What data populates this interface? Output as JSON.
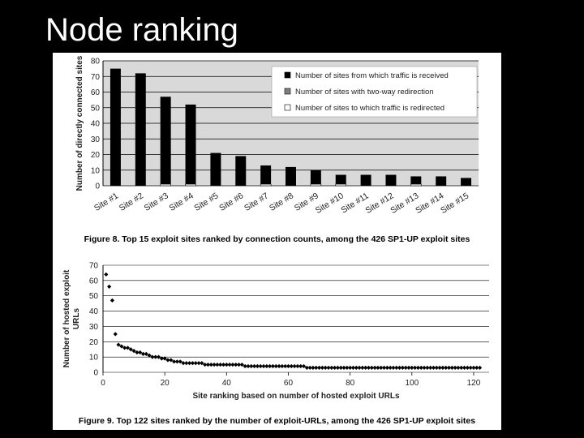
{
  "slide": {
    "title": "Node ranking"
  },
  "colors": {
    "background": "#000000",
    "panel": "#ffffff",
    "plot_area": "#d9d9d9",
    "bar": "#000000",
    "point": "#000000"
  },
  "chart_data": [
    {
      "type": "bar",
      "ylabel": "Number of directly connected sites",
      "ylim": [
        0,
        80
      ],
      "yticks": [
        "0",
        "10",
        "20",
        "30",
        "40",
        "50",
        "60",
        "70",
        "80"
      ],
      "grid": true,
      "legend_position": "top-right",
      "categories": [
        "Site #1",
        "Site #2",
        "Site #3",
        "Site #4",
        "Site #5",
        "Site #6",
        "Site #7",
        "Site #8",
        "Site #9",
        "Site #10",
        "Site #11",
        "Site #12",
        "Site #13",
        "Site #14",
        "Site #15"
      ],
      "series": [
        {
          "name": "Number of sites from which traffic is received",
          "color": "#000000",
          "values": [
            75,
            72,
            57,
            52,
            21,
            19,
            13,
            12,
            10,
            7,
            7,
            7,
            6,
            6,
            5
          ]
        },
        {
          "name": "Number of sites with two-way redirection",
          "color": "#808080",
          "values": [
            0,
            0,
            0,
            0,
            0,
            0,
            0,
            0,
            0,
            0,
            0,
            0,
            0,
            0,
            0
          ]
        },
        {
          "name": "Number of sites to which traffic is redirected",
          "color": "#ffffff",
          "values": [
            0,
            0,
            1,
            1,
            0,
            0,
            1,
            0,
            1,
            1,
            0,
            0,
            1,
            0,
            0
          ]
        }
      ],
      "caption": "Figure 8. Top 15 exploit sites ranked by connection counts, among the 426 SP1-UP exploit sites"
    },
    {
      "type": "scatter",
      "xlabel": "Site ranking based on number of hosted exploit URLs",
      "ylabel": "Number of hosted exploit URLs",
      "xlim": [
        0,
        125
      ],
      "ylim": [
        0,
        70
      ],
      "xticks": [
        "0",
        "20",
        "40",
        "60",
        "80",
        "100",
        "120"
      ],
      "yticks": [
        "0",
        "10",
        "20",
        "30",
        "40",
        "50",
        "60",
        "70"
      ],
      "grid": true,
      "x": [
        1,
        2,
        3,
        4,
        5,
        6,
        7,
        8,
        9,
        10,
        11,
        12,
        13,
        14,
        15,
        16,
        17,
        18,
        19,
        20,
        21,
        22,
        23,
        24,
        25,
        26,
        27,
        28,
        29,
        30,
        31,
        32,
        33,
        34,
        35,
        36,
        37,
        38,
        39,
        40,
        41,
        42,
        43,
        44,
        45,
        46,
        47,
        48,
        49,
        50,
        51,
        52,
        53,
        54,
        55,
        56,
        57,
        58,
        59,
        60,
        61,
        62,
        63,
        64,
        65,
        66,
        67,
        68,
        69,
        70,
        71,
        72,
        73,
        74,
        75,
        76,
        77,
        78,
        79,
        80,
        81,
        82,
        83,
        84,
        85,
        86,
        87,
        88,
        89,
        90,
        91,
        92,
        93,
        94,
        95,
        96,
        97,
        98,
        99,
        100,
        101,
        102,
        103,
        104,
        105,
        106,
        107,
        108,
        109,
        110,
        111,
        112,
        113,
        114,
        115,
        116,
        117,
        118,
        119,
        120,
        121,
        122
      ],
      "y": [
        64,
        56,
        47,
        25,
        18,
        17,
        16,
        16,
        15,
        14,
        13,
        13,
        12,
        12,
        11,
        10,
        10,
        10,
        9,
        9,
        8,
        8,
        7,
        7,
        7,
        6,
        6,
        6,
        6,
        6,
        6,
        6,
        5,
        5,
        5,
        5,
        5,
        5,
        5,
        5,
        5,
        5,
        5,
        5,
        5,
        4,
        4,
        4,
        4,
        4,
        4,
        4,
        4,
        4,
        4,
        4,
        4,
        4,
        4,
        4,
        4,
        4,
        4,
        4,
        4,
        3,
        3,
        3,
        3,
        3,
        3,
        3,
        3,
        3,
        3,
        3,
        3,
        3,
        3,
        3,
        3,
        3,
        3,
        3,
        3,
        3,
        3,
        3,
        3,
        3,
        3,
        3,
        3,
        3,
        3,
        3,
        3,
        3,
        3,
        3,
        3,
        3,
        3,
        3,
        3,
        3,
        3,
        3,
        3,
        3,
        3,
        3,
        3,
        3,
        3,
        3,
        3,
        3,
        3,
        3,
        3,
        3
      ],
      "caption": "Figure 9. Top 122 sites ranked by the number of exploit-URLs, among the 426 SP1-UP exploit sites"
    }
  ]
}
